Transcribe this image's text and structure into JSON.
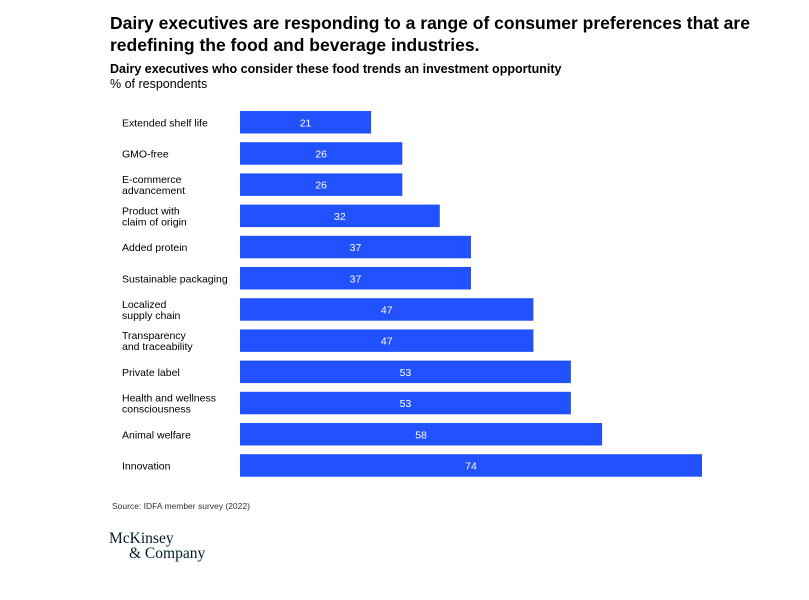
{
  "title": "Dairy executives are responding to a range of consumer preferences that are redefining the food and beverage industries.",
  "subtitle": "Dairy executives who consider these food trends an investment opportunity",
  "unit_label": "% of respondents",
  "source": "Source: IDFA member survey (2022)",
  "logo": {
    "line1": "McKinsey",
    "line2": "& Company"
  },
  "colors": {
    "bar": "#2251ff",
    "bar_text": "#ffffff",
    "text": "#000000"
  },
  "chart_data": {
    "type": "bar",
    "orientation": "horizontal",
    "categories": [
      [
        "Extended shelf life"
      ],
      [
        "GMO-free"
      ],
      [
        "E-commerce",
        "advancement"
      ],
      [
        "Product with",
        "claim of origin"
      ],
      [
        "Added protein"
      ],
      [
        "Sustainable packaging"
      ],
      [
        "Localized",
        "supply chain"
      ],
      [
        "Transparency",
        "and traceability"
      ],
      [
        "Private label"
      ],
      [
        "Health and wellness",
        "consciousness"
      ],
      [
        "Animal welfare"
      ],
      [
        "Innovation"
      ]
    ],
    "values": [
      21,
      26,
      26,
      32,
      37,
      37,
      47,
      47,
      53,
      53,
      58,
      74
    ],
    "xlim": [
      0,
      74
    ],
    "grid": false,
    "legend": false,
    "data_labels": true
  }
}
